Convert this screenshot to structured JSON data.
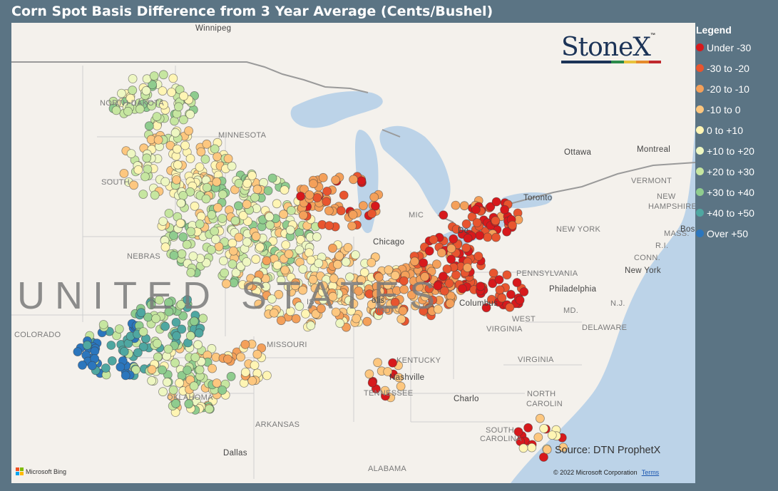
{
  "title": "Corn Spot Basis Difference from 3 Year Average (Cents/Bushel)",
  "logo_text": "StoneX",
  "logo_tm": "™",
  "source": "Source: DTN ProphetX",
  "copyright": "© 2022 Microsoft Corporation",
  "terms": "Terms",
  "bing": "Microsoft Bing",
  "watermark": "UNITED STATES",
  "legend": {
    "title": "Legend",
    "items": [
      {
        "label": "Under -30",
        "color": "#d7191c"
      },
      {
        "label": "-30 to -20",
        "color": "#e8552f"
      },
      {
        "label": "-20 to -10",
        "color": "#f4a05a"
      },
      {
        "label": "-10 to 0",
        "color": "#fdc77f"
      },
      {
        "label": "0 to +10",
        "color": "#fff5b4"
      },
      {
        "label": "+10 to +20",
        "color": "#eef7c2"
      },
      {
        "label": "+20 to +30",
        "color": "#c6e6a0"
      },
      {
        "label": "+30 to +40",
        "color": "#8fcc8e"
      },
      {
        "label": "+40 to +50",
        "color": "#4fa7a1"
      },
      {
        "label": "Over +50",
        "color": "#2b76bd"
      }
    ]
  },
  "places": [
    {
      "name": "Winnipeg",
      "type": "city"
    },
    {
      "name": "NORTH DAKOTA",
      "type": "state"
    },
    {
      "name": "MINNESOTA",
      "type": "state"
    },
    {
      "name": "SOUTH",
      "type": "state"
    },
    {
      "name": "NEBRAS",
      "type": "state"
    },
    {
      "name": "COLORADO",
      "type": "state"
    },
    {
      "name": "MISSOURI",
      "type": "state"
    },
    {
      "name": "OKLAHOMA",
      "type": "state"
    },
    {
      "name": "ARKANSAS",
      "type": "state"
    },
    {
      "name": "Dallas",
      "type": "city"
    },
    {
      "name": "ALABAMA",
      "type": "state"
    },
    {
      "name": "Chicago",
      "type": "city"
    },
    {
      "name": "INDI",
      "type": "state"
    },
    {
      "name": "KENTUCKY",
      "type": "state"
    },
    {
      "name": "Nashville",
      "type": "city"
    },
    {
      "name": "TENNESSEE",
      "type": "state"
    },
    {
      "name": "Columbus",
      "type": "city"
    },
    {
      "name": "WEST",
      "type": "state"
    },
    {
      "name": "VIRGINIA",
      "type": "state"
    },
    {
      "name": "VIRGINIA",
      "type": "state"
    },
    {
      "name": "Charlo",
      "type": "city"
    },
    {
      "name": "NORTH",
      "type": "state"
    },
    {
      "name": "CAROLIN",
      "type": "state"
    },
    {
      "name": "SOUTH",
      "type": "state"
    },
    {
      "name": "CAROLINA",
      "type": "state"
    },
    {
      "name": "PENNSYLVANIA",
      "type": "state"
    },
    {
      "name": "Philadelphia",
      "type": "city"
    },
    {
      "name": "New York",
      "type": "city"
    },
    {
      "name": "NEW YORK",
      "type": "state"
    },
    {
      "name": "MD.",
      "type": "state"
    },
    {
      "name": "DELAWARE",
      "type": "state"
    },
    {
      "name": "N.J.",
      "type": "state"
    },
    {
      "name": "CONN.",
      "type": "state"
    },
    {
      "name": "R.I.",
      "type": "state"
    },
    {
      "name": "MASS.",
      "type": "state"
    },
    {
      "name": "VERMONT",
      "type": "state"
    },
    {
      "name": "NEW",
      "type": "state"
    },
    {
      "name": "HAMPSHIRE",
      "type": "state"
    },
    {
      "name": "Ottawa",
      "type": "city"
    },
    {
      "name": "Montreal",
      "type": "city"
    },
    {
      "name": "Toronto",
      "type": "city"
    },
    {
      "name": "Bos",
      "type": "city"
    },
    {
      "name": "MIC",
      "type": "state"
    },
    {
      "name": "De",
      "type": "city"
    },
    {
      "name": "IS",
      "type": "state"
    },
    {
      "name": "olis",
      "type": "city"
    }
  ]
}
